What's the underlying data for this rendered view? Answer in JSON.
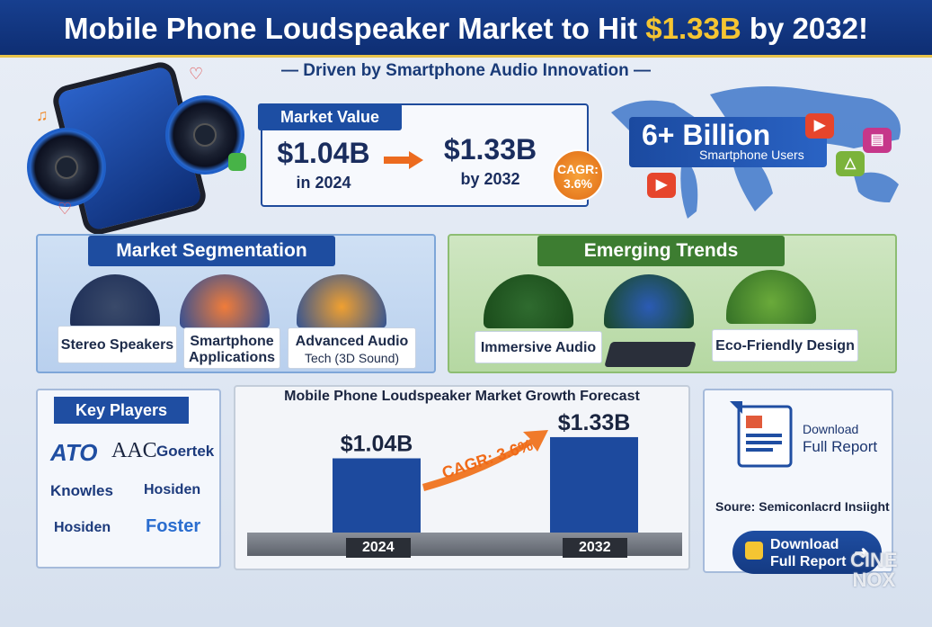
{
  "header": {
    "title_pre": "Mobile Phone Loudspeaker Market to Hit ",
    "title_highlight": "$1.33B",
    "title_post": " by 2032!"
  },
  "subtitle": "— Driven by Smartphone Audio Innovation —",
  "market_value": {
    "title": "Market Value",
    "from_value": "$1.04B",
    "from_year": "in 2024",
    "to_value": "$1.33B",
    "to_year": "by 2032",
    "cagr_label": "CAGR:",
    "cagr_value": "3.6%"
  },
  "users": {
    "big": "6+ Billion",
    "small": "Smartphone Users"
  },
  "segmentation": {
    "title": "Market Segmentation",
    "items": [
      {
        "label": "Stereo Speakers",
        "small": ""
      },
      {
        "label": "Smartphone Applications",
        "small": ""
      },
      {
        "label": "Advanced Audio",
        "small": "Tech (3D Sound)"
      }
    ]
  },
  "trends": {
    "title": "Emerging Trends",
    "items": [
      {
        "label": "Immersive Audio"
      },
      {
        "label": "Eco-Friendly Design"
      }
    ]
  },
  "key_players": {
    "title": "Key Players",
    "logos": [
      "AAC",
      "Goertek",
      "Knowles",
      "Hosiden",
      "Hosiden",
      "Foster"
    ]
  },
  "chart_data": {
    "type": "bar",
    "title": "Mobile Phone Loudspeaker Market Growth Forecast",
    "categories": [
      "2024",
      "2032"
    ],
    "values": [
      1.04,
      1.33
    ],
    "value_labels": [
      "$1.04B",
      "$1.33B"
    ],
    "annotation": "CAGR: 3.6%",
    "xlabel": "",
    "ylabel": "",
    "ylim": [
      0,
      1.6
    ]
  },
  "download": {
    "small": "Download",
    "big": "Full Report",
    "source": "Soure: Semiconlacrd Insiight",
    "button_line1": "Download",
    "button_line2": "Full Report"
  },
  "watermark": {
    "line1": "CINE",
    "line2": "NOX"
  },
  "colors": {
    "navy": "#0e2e73",
    "gold": "#f5c532",
    "orange": "#e9741d",
    "green": "#3d7d31",
    "bar": "#1d4a9e"
  }
}
